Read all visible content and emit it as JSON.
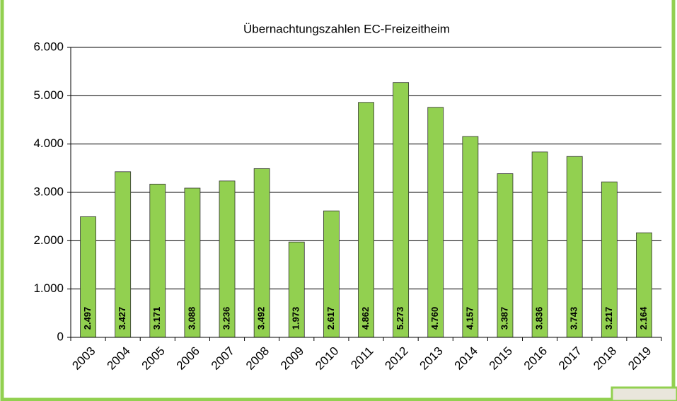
{
  "chart_data": {
    "type": "bar",
    "title": "Übernachtungszahlen EC-Freizeitheim",
    "categories": [
      "2003",
      "2004",
      "2005",
      "2006",
      "2007",
      "2008",
      "2009",
      "2010",
      "2011",
      "2012",
      "2013",
      "2014",
      "2015",
      "2016",
      "2017",
      "2018",
      "2019"
    ],
    "values": [
      2497,
      3427,
      3171,
      3088,
      3236,
      3492,
      1973,
      2617,
      4862,
      5273,
      4760,
      4157,
      3387,
      3836,
      3743,
      3217,
      2164
    ],
    "value_labels": [
      "2.497",
      "3.427",
      "3.171",
      "3.088",
      "3.236",
      "3.492",
      "1.973",
      "2.617",
      "4.862",
      "5.273",
      "4.760",
      "4.157",
      "3.387",
      "3.836",
      "3.743",
      "3.217",
      "2.164"
    ],
    "color": "#92d050",
    "ylim": [
      0,
      6000
    ],
    "yticks": [
      0,
      {
        "value": 1000,
        "label": "1.000"
      },
      {
        "value": 2000,
        "label": "2.000"
      },
      {
        "value": 3000,
        "label": "3.000"
      },
      {
        "value": 4000,
        "label": "4.000"
      },
      {
        "value": 5000,
        "label": "5.000"
      },
      {
        "value": 6000,
        "label": "6.000"
      }
    ],
    "grid": true
  }
}
